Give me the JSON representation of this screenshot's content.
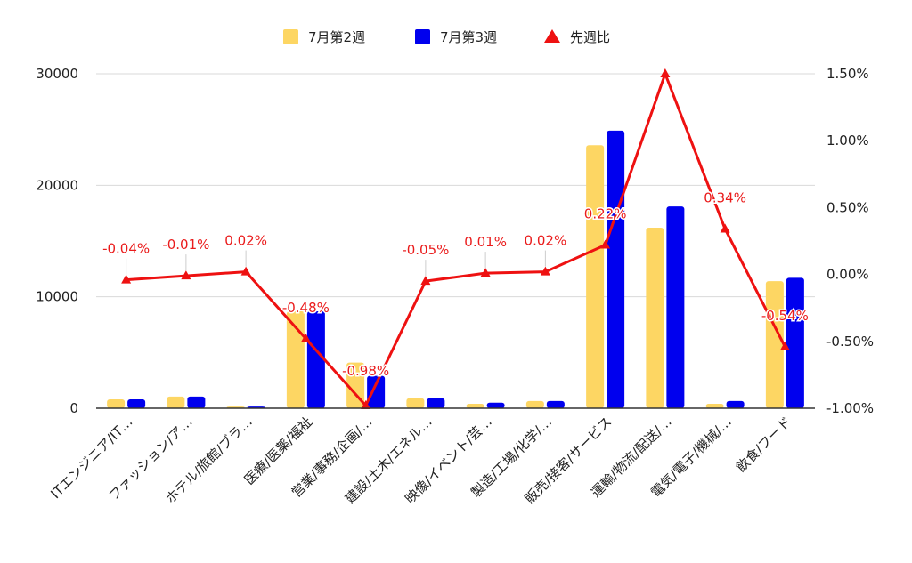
{
  "chart_data": {
    "type": "bar",
    "categories": [
      "ITエンジニア/IT…",
      "ファッション/ア…",
      "ホテル/旅館/ブラ…",
      "医療/医薬/福祉",
      "営業/事務/企画/…",
      "建設/土木/エネル…",
      "映像/イベント/芸…",
      "製造/工場/化学/…",
      "販売/接客/サービス",
      "運輸/物流/配送/…",
      "電気/電子/機械/…",
      "飲食/フード"
    ],
    "series": [
      {
        "name": "7月第2週",
        "type": "bar",
        "axis": "left",
        "color": "#fdd663",
        "values": [
          800,
          1050,
          150,
          8700,
          4100,
          900,
          400,
          650,
          23600,
          16200,
          400,
          11400
        ]
      },
      {
        "name": "7月第3週",
        "type": "bar",
        "axis": "left",
        "color": "#0000ee",
        "values": [
          800,
          1050,
          150,
          8700,
          2900,
          900,
          500,
          650,
          24900,
          18100,
          650,
          11700
        ]
      },
      {
        "name": "先週比",
        "type": "line",
        "axis": "right",
        "color": "#ee1111",
        "marker": "triangle",
        "values": [
          -0.04,
          -0.01,
          0.02,
          -0.48,
          -0.98,
          -0.05,
          0.01,
          0.02,
          0.22,
          1.5,
          0.34,
          -0.54
        ],
        "labels": [
          "-0.04%",
          "-0.01%",
          "0.02%",
          "-0.48%",
          "-0.98%",
          "-0.05%",
          "0.01%",
          "0.02%",
          "0.22%",
          "",
          "0.34%",
          "-0.54%"
        ]
      }
    ],
    "y_left": {
      "range": [
        0,
        30000
      ],
      "ticks": [
        "0",
        "10000",
        "20000",
        "30000"
      ],
      "tick_values": [
        0,
        10000,
        20000,
        30000
      ]
    },
    "y_right": {
      "range": [
        -1.0,
        1.5
      ],
      "ticks": [
        "-1.00%",
        "-0.50%",
        "0.00%",
        "0.50%",
        "1.00%",
        "1.50%"
      ],
      "tick_values": [
        -1.0,
        -0.5,
        0.0,
        0.5,
        1.0,
        1.5
      ]
    },
    "grid": true,
    "legend_position": "top"
  }
}
